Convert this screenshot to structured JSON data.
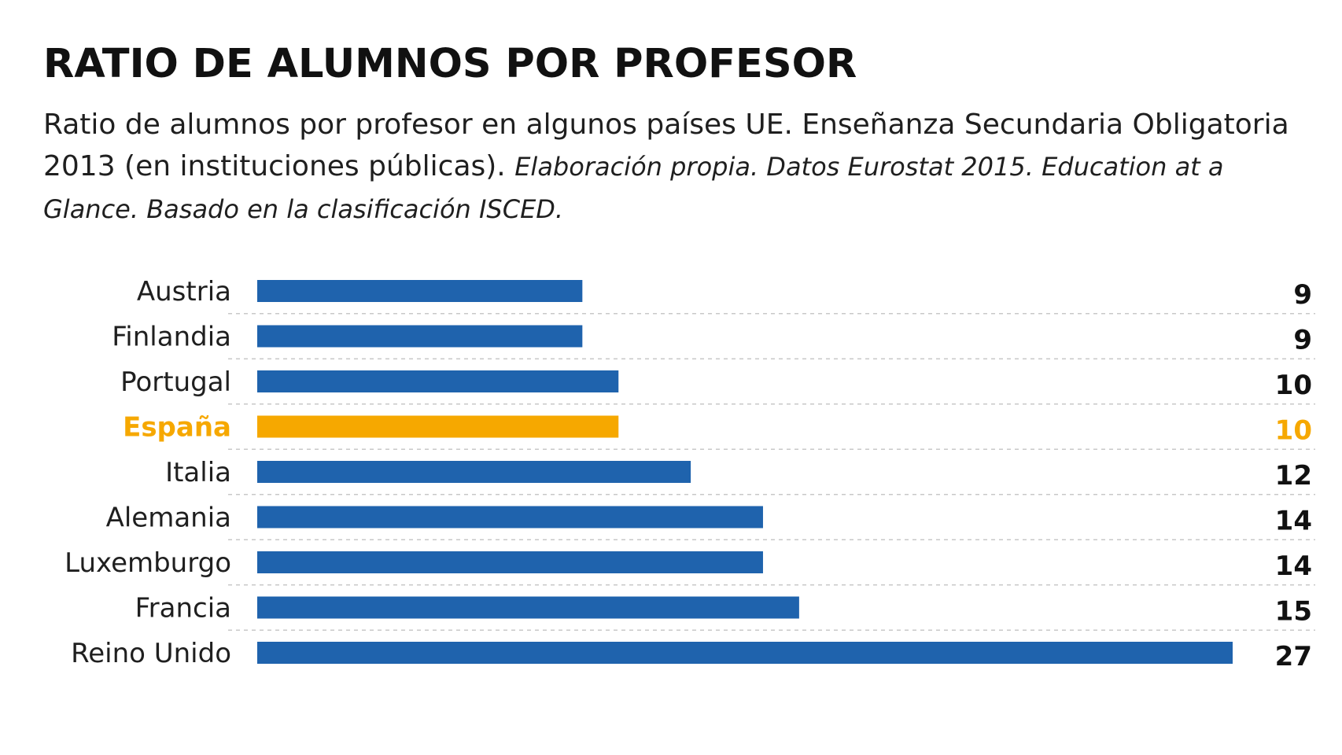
{
  "title": "RATIO DE ALUMNOS POR PROFESOR",
  "subtitle": "Ratio de alumnos por profesor en algunos países UE. Enseñanza Secundaria Obligatoria 2013 (en instituciones públicas).",
  "source": "Elaboración propia. Datos Eurostat 2015. Education at a Glance. Basado en la clasificación ISCED.",
  "chart_data": {
    "type": "bar",
    "orientation": "horizontal",
    "categories": [
      "Austria",
      "Finlandia",
      "Portugal",
      "España",
      "Italia",
      "Alemania",
      "Luxemburgo",
      "Francia",
      "Reino Unido"
    ],
    "values": [
      9,
      9,
      10,
      10,
      12,
      14,
      14,
      15,
      27
    ],
    "value_labels": [
      "9",
      "9",
      "10",
      "10",
      "12",
      "14",
      "14",
      "15",
      "27"
    ],
    "highlight_category": "España",
    "xlim": [
      0,
      27
    ],
    "grid": false,
    "row_separators": "dashed"
  },
  "colors": {
    "bar": "#1f63ad",
    "highlight": "#f6a800",
    "separator": "#c8c8c8"
  }
}
